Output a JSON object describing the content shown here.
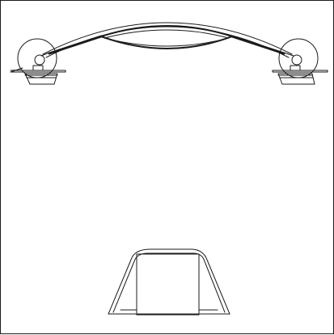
{
  "drawing": {
    "line_color": "#1a1a1a",
    "background": "#ffffff",
    "components": [
      "left-lamp-dome",
      "right-lamp-dome",
      "arched-double-arm",
      "base-stand"
    ]
  }
}
